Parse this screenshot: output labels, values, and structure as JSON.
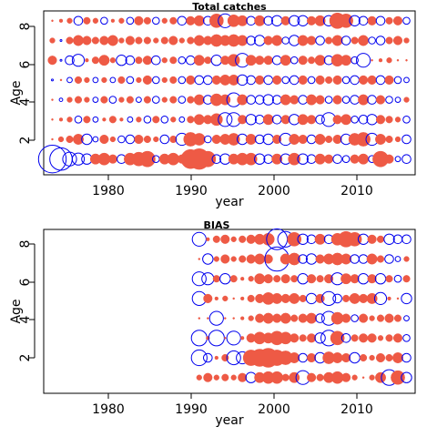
{
  "colors": {
    "positive": "#ee5a45",
    "negative": "#0000ee"
  },
  "chart_data": [
    {
      "type": "scatter",
      "subtype": "bubble-residuals",
      "title": "Total catches",
      "xlabel": "year",
      "ylabel": "Age",
      "xlim": [
        1973,
        2016
      ],
      "ylim": [
        0.2,
        8.5
      ],
      "xticks": [
        "1980",
        "1990",
        "2000",
        "2010"
      ],
      "yticks": [
        "2",
        "4",
        "6",
        "8"
      ],
      "years": [
        1974,
        1975,
        1976,
        1977,
        1978,
        1979,
        1980,
        1981,
        1982,
        1983,
        1984,
        1985,
        1986,
        1987,
        1988,
        1989,
        1990,
        1991,
        1992,
        1993,
        1994,
        1995,
        1996,
        1997,
        1998,
        1999,
        2000,
        2001,
        2002,
        2003,
        2004,
        2005,
        2006,
        2007,
        2008,
        2009,
        2010,
        2011,
        2012,
        2013,
        2014,
        2015
      ],
      "ages": [
        1,
        2,
        3,
        4,
        5,
        6,
        7,
        8
      ],
      "residuals": [
        [
          -1.6,
          -1.3,
          -0.8,
          -0.7,
          -0.6,
          0.6,
          0.7,
          0.5,
          -0.5,
          0.7,
          0.8,
          0.9,
          -0.4,
          0.6,
          0.7,
          0.5,
          1.1,
          1.2,
          0.9,
          -0.5,
          -0.6,
          0.6,
          0.7,
          0.7,
          -0.6,
          -0.5,
          0.6,
          -0.6,
          0.7,
          -0.6,
          -0.5,
          0.6,
          0.5,
          -0.5,
          -0.4,
          0.5,
          0.6,
          -0.4,
          0.9,
          0.5,
          -0.3,
          -0.5
        ],
        [
          0.1,
          0.3,
          0.4,
          0.6,
          -0.6,
          -0.3,
          0.5,
          0.3,
          -0.4,
          -0.5,
          0.5,
          0.4,
          0.3,
          -0.5,
          0.4,
          -0.7,
          0.8,
          0.7,
          -0.4,
          0.5,
          0.6,
          0.7,
          -0.6,
          0.6,
          -0.5,
          -0.6,
          0.5,
          -0.7,
          0.6,
          0.5,
          -0.5,
          0.6,
          0.4,
          0.5,
          -0.6,
          0.7,
          0.8,
          -0.7,
          0.6,
          0.4,
          0.3,
          -0.5
        ],
        [
          0.1,
          0.2,
          0.3,
          -0.4,
          0.4,
          -0.3,
          0.2,
          0.4,
          0.2,
          -0.3,
          0.3,
          -0.4,
          0.4,
          -0.4,
          0.3,
          -0.3,
          0.4,
          0.6,
          0.5,
          0.7,
          -0.8,
          -0.8,
          0.5,
          -0.6,
          -0.5,
          0.6,
          -0.5,
          0.5,
          -0.6,
          0.6,
          0.5,
          -0.5,
          -0.8,
          0.5,
          0.6,
          -0.4,
          -0.5,
          -0.6,
          0.5,
          0.4,
          0.3,
          -0.4
        ],
        [
          0.1,
          -0.2,
          0.3,
          0.4,
          0.3,
          -0.3,
          0.4,
          -0.4,
          0.3,
          0.4,
          -0.3,
          0.4,
          -0.4,
          0.3,
          0.4,
          -0.4,
          0.4,
          0.6,
          -0.5,
          0.7,
          0.6,
          -0.8,
          0.6,
          -0.5,
          -0.5,
          -0.6,
          -0.5,
          0.6,
          0.5,
          -0.5,
          0.6,
          0.5,
          -0.4,
          0.5,
          -0.4,
          -0.5,
          0.6,
          -0.5,
          0.5,
          -0.4,
          -0.3,
          0.3
        ],
        [
          -0.1,
          0.1,
          -0.3,
          0.4,
          0.3,
          -0.3,
          0.3,
          -0.3,
          0.4,
          -0.4,
          0.3,
          0.5,
          -0.4,
          0.3,
          0.4,
          -0.4,
          0.5,
          -0.5,
          -0.5,
          0.5,
          0.6,
          0.6,
          -0.6,
          -0.5,
          0.5,
          -0.5,
          0.5,
          -0.4,
          -0.5,
          0.5,
          -0.4,
          0.5,
          0.4,
          0.5,
          -0.4,
          -0.5,
          0.5,
          0.5,
          -0.5,
          0.5,
          -0.4,
          -0.3
        ],
        [
          0.5,
          -0.1,
          -0.5,
          -0.7,
          0.2,
          0.4,
          0.6,
          0.3,
          -0.6,
          -0.5,
          0.4,
          0.5,
          -0.5,
          0.3,
          0.4,
          -0.4,
          -0.5,
          0.6,
          0.4,
          -0.6,
          0.5,
          0.7,
          -0.8,
          0.6,
          0.5,
          0.5,
          -0.5,
          0.6,
          -0.4,
          0.5,
          0.4,
          0.6,
          -0.5,
          0.7,
          0.6,
          -0.4,
          -0.8,
          0.1,
          0.2,
          0.3,
          0.1,
          0.1
        ],
        [
          0.3,
          -0.1,
          0.4,
          0.6,
          0.5,
          0.4,
          0.5,
          0.6,
          0.3,
          0.5,
          0.4,
          0.4,
          0.3,
          0.4,
          0.5,
          0.3,
          0.4,
          0.6,
          0.5,
          0.7,
          0.6,
          0.7,
          0.6,
          -0.5,
          -0.6,
          0.5,
          0.6,
          -0.4,
          -0.6,
          0.6,
          0.5,
          -0.5,
          0.4,
          0.6,
          -0.5,
          0.4,
          0.6,
          -0.4,
          -0.5,
          0.4,
          0.5,
          0.3
        ],
        [
          0.1,
          0.2,
          0.3,
          -0.5,
          0.4,
          0.3,
          -0.4,
          0.2,
          0.3,
          -0.4,
          0.5,
          0.4,
          -0.4,
          0.3,
          0.4,
          -0.5,
          0.5,
          0.6,
          -0.5,
          0.8,
          -0.8,
          0.7,
          0.6,
          -0.5,
          0.6,
          -0.5,
          -0.6,
          0.5,
          -0.6,
          -0.6,
          0.5,
          0.6,
          -0.6,
          0.9,
          0.8,
          -0.6,
          -0.5,
          0.5,
          -0.5,
          0.4,
          0.5,
          -0.4
        ]
      ]
    },
    {
      "type": "scatter",
      "subtype": "bubble-residuals",
      "title": "BIAS",
      "xlabel": "year",
      "ylabel": "Age",
      "xlim": [
        1973,
        2016
      ],
      "ylim": [
        0.2,
        8.5
      ],
      "xticks": [
        "1980",
        "1990",
        "2000",
        "2010"
      ],
      "yticks": [
        "2",
        "4",
        "6",
        "8"
      ],
      "years": [
        1991,
        1992,
        1993,
        1994,
        1995,
        1996,
        1997,
        1998,
        1999,
        2000,
        2001,
        2002,
        2003,
        2004,
        2005,
        2006,
        2007,
        2008,
        2009,
        2010,
        2011,
        2012,
        2013,
        2014,
        2015
      ],
      "ages": [
        1,
        2,
        3,
        4,
        5,
        6,
        7,
        8
      ],
      "residuals": [
        [
          0.3,
          0.5,
          0.3,
          0.4,
          0.3,
          0.5,
          -0.6,
          0.6,
          0.7,
          0.7,
          0.4,
          0.6,
          -0.8,
          0.5,
          0.4,
          0.6,
          0.7,
          0.5,
          0.3,
          0.1,
          0.3,
          0.6,
          -0.9,
          0.8,
          -0.6
        ],
        [
          -0.9,
          -0.5,
          0.2,
          0.4,
          -0.8,
          -0.7,
          0.9,
          1.0,
          1.1,
          0.9,
          0.8,
          0.6,
          -0.5,
          0.5,
          -0.6,
          0.7,
          0.6,
          0.5,
          -0.6,
          0.4,
          0.3,
          0.5,
          0.4,
          0.6,
          -0.5
        ],
        [
          -0.9,
          0.2,
          -0.9,
          0.1,
          -0.8,
          0.2,
          0.5,
          0.7,
          0.6,
          0.8,
          0.7,
          0.5,
          0.4,
          0.5,
          -0.6,
          -0.9,
          0.8,
          -0.5,
          0.4,
          0.5,
          0.5,
          0.3,
          0.4,
          0.5,
          -0.4
        ],
        [
          0.1,
          0.1,
          -0.8,
          0.1,
          0.1,
          0.2,
          0.3,
          0.5,
          0.6,
          0.5,
          0.6,
          0.4,
          0.5,
          0.6,
          -0.5,
          -0.8,
          0.7,
          0.5,
          -0.4,
          0.5,
          0.3,
          0.4,
          0.5,
          0.4,
          -0.3
        ],
        [
          -0.8,
          0.5,
          0.2,
          0.3,
          0.1,
          0.2,
          0.4,
          0.5,
          0.7,
          0.6,
          0.5,
          0.6,
          0.4,
          -0.6,
          0.5,
          -0.8,
          -0.5,
          0.4,
          0.6,
          0.5,
          0.6,
          -0.7,
          0.2,
          0.1,
          -0.6
        ],
        [
          -0.8,
          -0.7,
          0.4,
          -0.6,
          0.4,
          0.2,
          0.3,
          0.6,
          0.5,
          0.4,
          0.5,
          0.4,
          -0.6,
          0.5,
          0.4,
          0.5,
          -0.7,
          0.6,
          0.5,
          -0.6,
          0.5,
          -0.6,
          0.4,
          -0.4,
          0.4
        ],
        [
          0.1,
          -0.6,
          0.3,
          0.5,
          0.3,
          0.4,
          0.5,
          0.6,
          0.5,
          -1.4,
          0.6,
          0.7,
          -0.5,
          -0.6,
          0.5,
          0.6,
          0.7,
          0.6,
          -0.5,
          -0.5,
          0.6,
          0.4,
          -0.5,
          -0.3,
          0.3
        ],
        [
          -0.8,
          0.2,
          0.4,
          0.5,
          0.3,
          0.4,
          0.5,
          0.6,
          0.7,
          -1.2,
          -0.9,
          0.8,
          -0.6,
          -0.5,
          0.6,
          -0.5,
          0.7,
          0.9,
          0.8,
          -0.6,
          0.5,
          0.4,
          -0.6,
          -0.5,
          -0.5
        ]
      ]
    }
  ]
}
